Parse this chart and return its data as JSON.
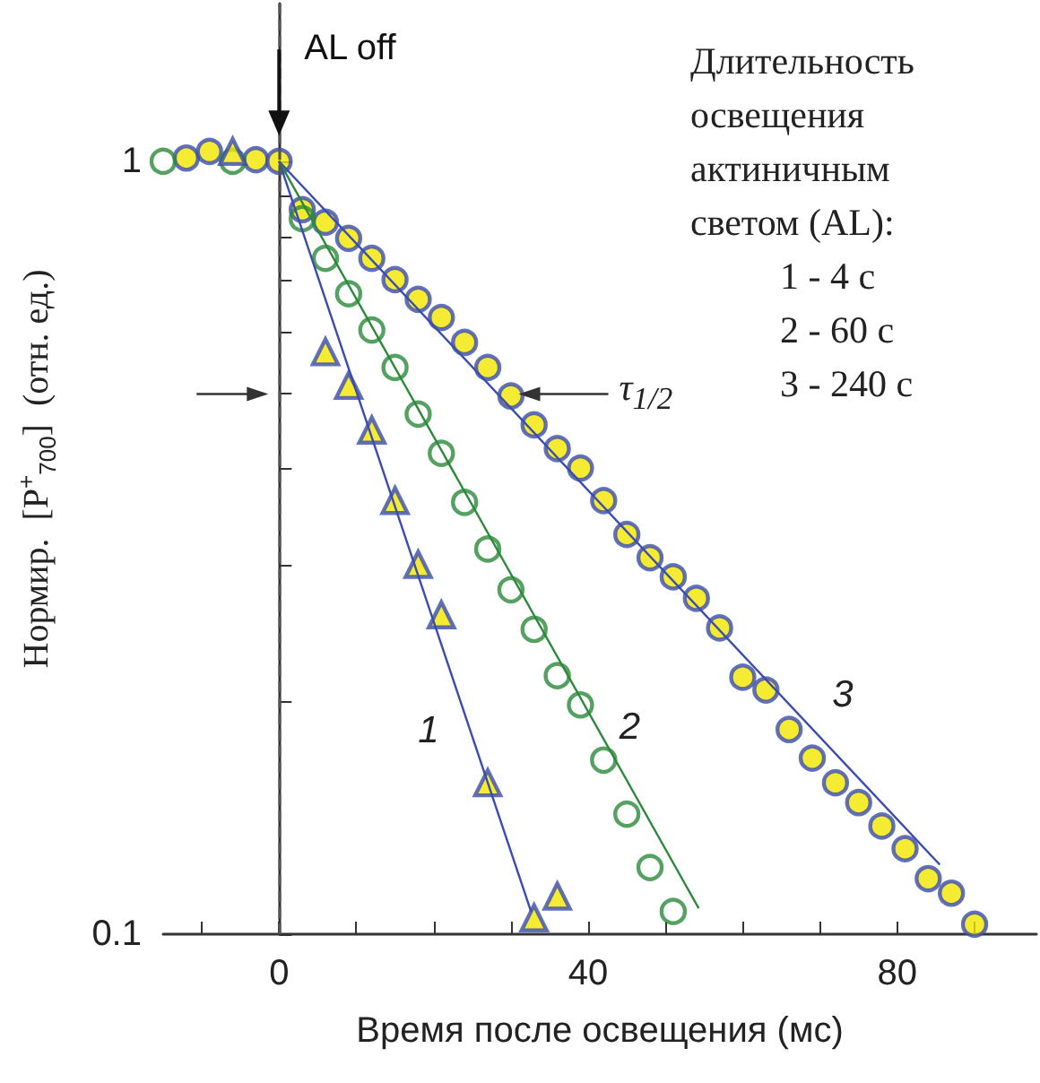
{
  "chart_data": {
    "type": "scatter",
    "xlabel": "Время после освещения (мс)",
    "ylabel": "Нормир.  [P$^{+}$$_{700}$]  (отн. ед.)",
    "xlim": [
      -15,
      98
    ],
    "xticks": [
      {
        "value": -10,
        "label": null
      },
      0,
      {
        "value": 10,
        "label": null
      },
      {
        "value": 20,
        "label": null
      },
      {
        "value": 30,
        "label": null
      },
      40,
      {
        "value": 50,
        "label": null
      },
      {
        "value": 60,
        "label": null
      },
      {
        "value": 70,
        "label": null
      },
      80,
      {
        "value": 90,
        "label": null
      }
    ],
    "ylim": [
      0.1,
      1.6
    ],
    "yticks": [
      0.1,
      {
        "value": 0.2,
        "label": null
      },
      {
        "value": 0.3,
        "label": null
      },
      {
        "value": 0.4,
        "label": null
      },
      {
        "value": 0.5,
        "label": null
      },
      {
        "value": 0.6,
        "label": null
      },
      {
        "value": 0.7,
        "label": null
      },
      {
        "value": 0.8,
        "label": null
      },
      {
        "value": 0.9,
        "label": null
      },
      1
    ],
    "log": true,
    "grid": false,
    "series": [
      {
        "marker": "circle",
        "color": "#f2e600",
        "x": [
          -12,
          -9,
          -3,
          0,
          3,
          6,
          9,
          12,
          15,
          18,
          21,
          24,
          27,
          30,
          33,
          36,
          39,
          42,
          45,
          48,
          51,
          54,
          57,
          60,
          63,
          66,
          69,
          72,
          75,
          78,
          81,
          84,
          87,
          90
        ],
        "values": [
          1.01,
          1.03,
          1.005,
          1.0,
          0.866,
          0.834,
          0.795,
          0.749,
          0.703,
          0.663,
          0.628,
          0.583,
          0.541,
          0.497,
          0.456,
          0.425,
          0.401,
          0.364,
          0.329,
          0.307,
          0.29,
          0.272,
          0.249,
          0.215,
          0.207,
          0.184,
          0.169,
          0.157,
          0.148,
          0.138,
          0.129,
          0.118,
          0.113,
          0.103
        ]
      },
      {
        "marker": "circle",
        "color": "#2a8a3a",
        "x": [
          -15,
          -6,
          3,
          6,
          9,
          12,
          15,
          18,
          21,
          24,
          27,
          30,
          33,
          36,
          39,
          42,
          45,
          48,
          51
        ],
        "values": [
          1.0,
          1.0,
          0.843,
          0.749,
          0.674,
          0.605,
          0.541,
          0.471,
          0.419,
          0.362,
          0.315,
          0.279,
          0.248,
          0.216,
          0.198,
          0.168,
          0.143,
          0.122,
          0.107
        ]
      },
      {
        "marker": "triangle",
        "color": "#f2e600",
        "x": [
          -6,
          6,
          9,
          12,
          15,
          18,
          21,
          27,
          33,
          36
        ],
        "values": [
          1.03,
          0.567,
          0.513,
          0.449,
          0.364,
          0.301,
          0.259,
          0.157,
          0.105,
          0.112
        ]
      },
      {
        "type": "line",
        "name": "3",
        "marker": "none",
        "color": "#3a4cb0",
        "x": [
          0,
          85.5
        ],
        "values": [
          1.0,
          0.123
        ]
      },
      {
        "type": "line",
        "name": "2",
        "marker": "none",
        "color": "#2a8a3a",
        "x": [
          0,
          54.3
        ],
        "values": [
          1.0,
          0.108
        ]
      },
      {
        "type": "line",
        "name": "1",
        "marker": "none",
        "color": "#3a4cb0",
        "x": [
          0,
          32.6
        ],
        "values": [
          1.0,
          0.107
        ]
      }
    ],
    "ref_lines": [
      {
        "axis": "x",
        "value": 0,
        "line_style": "dashed",
        "color": "#555555"
      }
    ],
    "annotations": [
      {
        "text": "AL off",
        "x": 0,
        "y": 1.08
      },
      {
        "text": "τ$_{1/2}$",
        "x": 31,
        "y": 0.5
      },
      "Длительность",
      "освещения",
      "актиничным",
      "светом (AL):",
      "1 - 4 с",
      "2 - 60 с",
      "3 - 240 с"
    ]
  }
}
